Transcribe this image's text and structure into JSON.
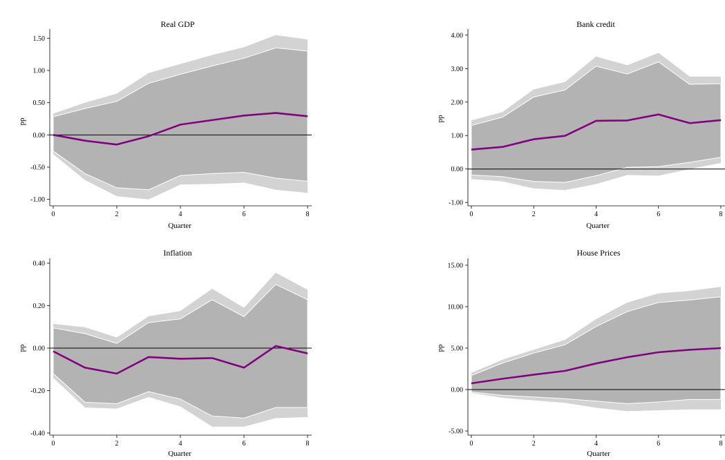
{
  "chart_data": [
    {
      "type": "area",
      "title": "Real GDP",
      "xlabel": "Quarter",
      "ylabel": "pp",
      "xlim": [
        0,
        8
      ],
      "ylim": [
        -1.1,
        1.6
      ],
      "xticks": [
        0,
        2,
        4,
        6,
        8
      ],
      "yticks": [
        -1.0,
        -0.5,
        0.0,
        0.5,
        1.0,
        1.5
      ],
      "ytick_labels": [
        "-1.00",
        "-0.50",
        "0.00",
        "0.50",
        "1.00",
        "1.50"
      ],
      "x": [
        0,
        1,
        2,
        3,
        4,
        5,
        6,
        7,
        8
      ],
      "outer_band": {
        "upper": [
          0.33,
          0.5,
          0.64,
          0.96,
          1.1,
          1.24,
          1.36,
          1.55,
          1.48
        ],
        "lower": [
          -0.3,
          -0.7,
          -0.95,
          -1.0,
          -0.77,
          -0.76,
          -0.74,
          -0.85,
          -0.9
        ]
      },
      "inner_band": {
        "upper": [
          0.28,
          0.41,
          0.52,
          0.8,
          0.94,
          1.07,
          1.19,
          1.35,
          1.3
        ],
        "lower": [
          -0.25,
          -0.6,
          -0.82,
          -0.85,
          -0.63,
          -0.6,
          -0.58,
          -0.67,
          -0.72
        ]
      },
      "series": [
        {
          "values": [
            0.0,
            -0.09,
            -0.15,
            -0.02,
            0.16,
            0.23,
            0.3,
            0.34,
            0.29
          ]
        }
      ],
      "colors": {
        "line": "#800080",
        "inner": "#b3b3b3",
        "outer": "#d3d3d3",
        "zero": "#000000"
      }
    },
    {
      "type": "area",
      "title": "Bank credit",
      "xlabel": "Quarter",
      "ylabel": "pp",
      "xlim": [
        0,
        8
      ],
      "ylim": [
        -1.1,
        4.1
      ],
      "xticks": [
        0,
        2,
        4,
        6,
        8
      ],
      "yticks": [
        -1.0,
        0.0,
        1.0,
        2.0,
        3.0,
        4.0
      ],
      "ytick_labels": [
        "-1.00",
        "0.00",
        "1.00",
        "2.00",
        "3.00",
        "4.00"
      ],
      "x": [
        0,
        1,
        2,
        3,
        4,
        5,
        6,
        7,
        8
      ],
      "outer_band": {
        "upper": [
          1.45,
          1.7,
          2.38,
          2.6,
          3.36,
          3.1,
          3.47,
          2.76,
          2.76
        ],
        "lower": [
          -0.3,
          -0.37,
          -0.58,
          -0.63,
          -0.45,
          -0.18,
          -0.2,
          0.0,
          0.18
        ]
      },
      "inner_band": {
        "upper": [
          1.3,
          1.55,
          2.15,
          2.36,
          3.07,
          2.84,
          3.2,
          2.53,
          2.55
        ],
        "lower": [
          -0.18,
          -0.23,
          -0.37,
          -0.4,
          -0.2,
          0.05,
          0.07,
          0.2,
          0.35
        ]
      },
      "series": [
        {
          "values": [
            0.58,
            0.66,
            0.89,
            0.99,
            1.44,
            1.45,
            1.63,
            1.37,
            1.46
          ]
        }
      ],
      "colors": {
        "line": "#800080",
        "inner": "#b3b3b3",
        "outer": "#d3d3d3",
        "zero": "#000000"
      }
    },
    {
      "type": "area",
      "title": "Inflation",
      "xlabel": "Quarter",
      "ylabel": "pp",
      "xlim": [
        0,
        8
      ],
      "ylim": [
        -0.41,
        0.41
      ],
      "xticks": [
        0,
        2,
        4,
        6,
        8
      ],
      "yticks": [
        -0.4,
        -0.2,
        0.0,
        0.2,
        0.4
      ],
      "ytick_labels": [
        "-0.40",
        "-0.20",
        "0.00",
        "0.20",
        "0.40"
      ],
      "x": [
        0,
        1,
        2,
        3,
        4,
        5,
        6,
        7,
        8
      ],
      "outer_band": {
        "upper": [
          0.115,
          0.098,
          0.05,
          0.15,
          0.175,
          0.28,
          0.19,
          0.355,
          0.275
        ],
        "lower": [
          -0.14,
          -0.28,
          -0.285,
          -0.23,
          -0.275,
          -0.37,
          -0.37,
          -0.33,
          -0.325
        ]
      },
      "inner_band": {
        "upper": [
          0.095,
          0.068,
          0.022,
          0.12,
          0.138,
          0.228,
          0.148,
          0.3,
          0.228
        ],
        "lower": [
          -0.12,
          -0.255,
          -0.262,
          -0.205,
          -0.24,
          -0.32,
          -0.33,
          -0.28,
          -0.28
        ]
      },
      "series": [
        {
          "values": [
            -0.015,
            -0.092,
            -0.12,
            -0.042,
            -0.05,
            -0.047,
            -0.092,
            0.01,
            -0.025
          ]
        }
      ],
      "colors": {
        "line": "#800080",
        "inner": "#b3b3b3",
        "outer": "#d3d3d3",
        "zero": "#000000"
      }
    },
    {
      "type": "area",
      "title": "House Prices",
      "xlabel": "Quarter",
      "ylabel": "pp",
      "xlim": [
        0,
        8
      ],
      "ylim": [
        -5.5,
        15.5
      ],
      "xticks": [
        0,
        2,
        4,
        6,
        8
      ],
      "yticks": [
        -5.0,
        0.0,
        5.0,
        10.0,
        15.0
      ],
      "ytick_labels": [
        "-5.00",
        "0.00",
        "5.00",
        "10.00",
        "15.00"
      ],
      "x": [
        0,
        1,
        2,
        3,
        4,
        5,
        6,
        7,
        8
      ],
      "outer_band": {
        "upper": [
          2.0,
          3.6,
          4.8,
          6.0,
          8.5,
          10.5,
          11.6,
          11.9,
          12.4
        ],
        "lower": [
          -0.4,
          -1.0,
          -1.3,
          -1.6,
          -2.2,
          -2.6,
          -2.5,
          -2.4,
          -2.4
        ]
      },
      "inner_band": {
        "upper": [
          1.7,
          3.2,
          4.4,
          5.4,
          7.6,
          9.4,
          10.5,
          10.8,
          11.2
        ],
        "lower": [
          -0.3,
          -0.7,
          -0.9,
          -1.1,
          -1.4,
          -1.7,
          -1.5,
          -1.2,
          -1.2
        ]
      },
      "series": [
        {
          "values": [
            0.75,
            1.3,
            1.8,
            2.25,
            3.15,
            3.9,
            4.5,
            4.8,
            5.0
          ]
        }
      ],
      "colors": {
        "line": "#800080",
        "inner": "#b3b3b3",
        "outer": "#d3d3d3",
        "zero": "#000000"
      }
    }
  ]
}
